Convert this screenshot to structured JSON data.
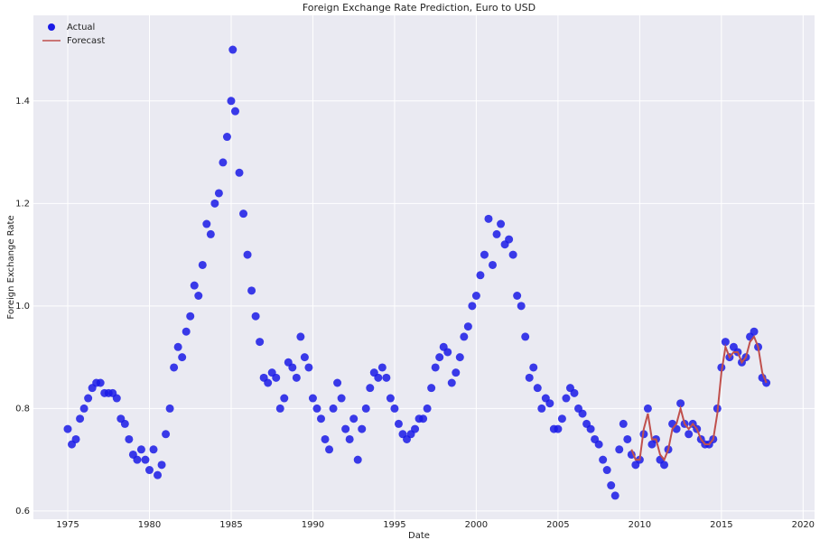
{
  "chart_data": {
    "type": "scatter",
    "title": "Foreign Exchange Rate Prediction, Euro to USD",
    "x_label": "Date",
    "y_label": "Foreign Exchange Rate",
    "xlim": [
      1972.9,
      2020.7
    ],
    "ylim": [
      0.584,
      1.567
    ],
    "xticks": [
      1975,
      1980,
      1985,
      1990,
      1995,
      2000,
      2005,
      2010,
      2015,
      2020
    ],
    "yticks": [
      0.6,
      0.8,
      {
        "value": 1,
        "label": "1.0"
      },
      1.2,
      1.4
    ],
    "grid": true,
    "legend": "upper-left",
    "series": [
      {
        "name": "Actual",
        "color": "#1a1ae6",
        "x": [
          1975,
          1975.25,
          1975.5,
          1975.75,
          1976,
          1976.25,
          1976.5,
          1976.75,
          1977,
          1977.25,
          1977.5,
          1977.75,
          1978,
          1978.25,
          1978.5,
          1978.75,
          1979,
          1979.25,
          1979.5,
          1979.75,
          1980,
          1980.25,
          1980.5,
          1980.75,
          1981,
          1981.25,
          1981.5,
          1981.75,
          1982,
          1982.25,
          1982.5,
          1982.75,
          1983,
          1983.25,
          1983.5,
          1983.75,
          1984,
          1984.25,
          1984.5,
          1984.75,
          1985,
          1985.1,
          1985.25,
          1985.5,
          1985.75,
          1986,
          1986.25,
          1986.5,
          1986.75,
          1987,
          1987.25,
          1987.5,
          1987.75,
          1988,
          1988.25,
          1988.5,
          1988.75,
          1989,
          1989.25,
          1989.5,
          1989.75,
          1990,
          1990.25,
          1990.5,
          1990.75,
          1991,
          1991.25,
          1991.5,
          1991.75,
          1992,
          1992.25,
          1992.5,
          1992.75,
          1993,
          1993.25,
          1993.5,
          1993.75,
          1994,
          1994.25,
          1994.5,
          1994.75,
          1995,
          1995.25,
          1995.5,
          1995.75,
          1996,
          1996.25,
          1996.5,
          1996.75,
          1997,
          1997.25,
          1997.5,
          1997.75,
          1998,
          1998.25,
          1998.5,
          1998.75,
          1999,
          1999.25,
          1999.5,
          1999.75,
          2000,
          2000.25,
          2000.5,
          2000.75,
          2001,
          2001.25,
          2001.5,
          2001.75,
          2002,
          2002.25,
          2002.5,
          2002.75,
          2003,
          2003.25,
          2003.5,
          2003.75,
          2004,
          2004.25,
          2004.5,
          2004.75,
          2005,
          2005.25,
          2005.5,
          2005.75,
          2006,
          2006.25,
          2006.5,
          2006.75,
          2007,
          2007.25,
          2007.5,
          2007.75,
          2008,
          2008.25,
          2008.5,
          2008.75,
          2009,
          2009.25,
          2009.5,
          2009.75,
          2010,
          2010.25,
          2010.5,
          2010.75,
          2011,
          2011.25,
          2011.5,
          2011.75,
          2012,
          2012.25,
          2012.5,
          2012.75,
          2013,
          2013.25,
          2013.5,
          2013.75,
          2014,
          2014.25,
          2014.5,
          2014.75,
          2015,
          2015.25,
          2015.5,
          2015.75,
          2016,
          2016.25,
          2016.5,
          2016.75,
          2017,
          2017.25,
          2017.5,
          2017.75
        ],
        "values": [
          0.76,
          0.73,
          0.74,
          0.78,
          0.8,
          0.82,
          0.84,
          0.85,
          0.85,
          0.83,
          0.83,
          0.83,
          0.82,
          0.78,
          0.77,
          0.74,
          0.71,
          0.7,
          0.72,
          0.7,
          0.68,
          0.72,
          0.67,
          0.69,
          0.75,
          0.8,
          0.88,
          0.92,
          0.9,
          0.95,
          0.98,
          1.04,
          1.02,
          1.08,
          1.16,
          1.14,
          1.2,
          1.22,
          1.28,
          1.33,
          1.4,
          1.5,
          1.38,
          1.26,
          1.18,
          1.1,
          1.03,
          0.98,
          0.93,
          0.86,
          0.85,
          0.87,
          0.86,
          0.8,
          0.82,
          0.89,
          0.88,
          0.86,
          0.94,
          0.9,
          0.88,
          0.82,
          0.8,
          0.78,
          0.74,
          0.72,
          0.8,
          0.85,
          0.82,
          0.76,
          0.74,
          0.78,
          0.7,
          0.76,
          0.8,
          0.84,
          0.87,
          0.86,
          0.88,
          0.86,
          0.82,
          0.8,
          0.77,
          0.75,
          0.74,
          0.75,
          0.76,
          0.78,
          0.78,
          0.8,
          0.84,
          0.88,
          0.9,
          0.92,
          0.91,
          0.85,
          0.87,
          0.9,
          0.94,
          0.96,
          1.0,
          1.02,
          1.06,
          1.1,
          1.17,
          1.08,
          1.14,
          1.16,
          1.12,
          1.13,
          1.1,
          1.02,
          1.0,
          0.94,
          0.86,
          0.88,
          0.84,
          0.8,
          0.82,
          0.81,
          0.76,
          0.76,
          0.78,
          0.82,
          0.84,
          0.83,
          0.8,
          0.79,
          0.77,
          0.76,
          0.74,
          0.73,
          0.7,
          0.68,
          0.65,
          0.63,
          0.72,
          0.77,
          0.74,
          0.71,
          0.69,
          0.7,
          0.75,
          0.8,
          0.73,
          0.74,
          0.7,
          0.69,
          0.72,
          0.77,
          0.76,
          0.81,
          0.77,
          0.75,
          0.77,
          0.76,
          0.74,
          0.73,
          0.73,
          0.74,
          0.8,
          0.88,
          0.93,
          0.9,
          0.92,
          0.91,
          0.89,
          0.9,
          0.94,
          0.95,
          0.92,
          0.86,
          0.85
        ]
      },
      {
        "name": "Forecast",
        "color": "#c0504d",
        "type": "line",
        "x": [
          2009.5,
          2009.75,
          2010,
          2010.25,
          2010.5,
          2010.75,
          2011,
          2011.25,
          2011.5,
          2011.75,
          2012,
          2012.25,
          2012.5,
          2012.75,
          2013,
          2013.25,
          2013.5,
          2013.75,
          2014,
          2014.25,
          2014.5,
          2014.75,
          2015,
          2015.25,
          2015.5,
          2015.75,
          2016,
          2016.25,
          2016.5,
          2016.75,
          2017,
          2017.25,
          2017.5,
          2017.75
        ],
        "values": [
          0.72,
          0.7,
          0.7,
          0.76,
          0.79,
          0.74,
          0.74,
          0.71,
          0.7,
          0.72,
          0.76,
          0.77,
          0.8,
          0.77,
          0.76,
          0.77,
          0.76,
          0.74,
          0.73,
          0.73,
          0.74,
          0.79,
          0.87,
          0.92,
          0.9,
          0.91,
          0.91,
          0.89,
          0.9,
          0.93,
          0.94,
          0.92,
          0.87,
          0.85
        ]
      }
    ]
  }
}
